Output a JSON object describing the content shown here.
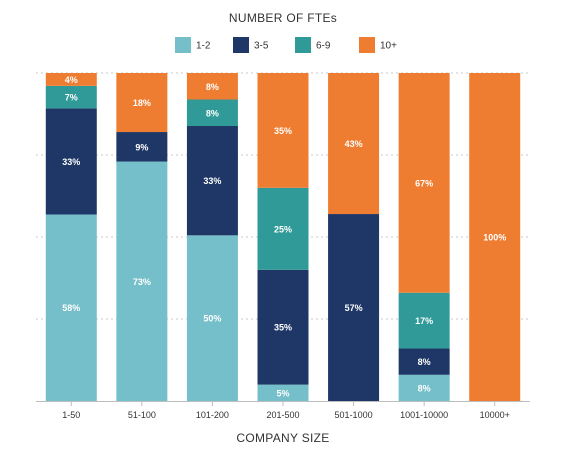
{
  "chart_data": {
    "type": "bar",
    "stacked": true,
    "title": "NUMBER OF FTEs",
    "xlabel": "COMPANY SIZE",
    "ylabel": "",
    "ylim": [
      0,
      100
    ],
    "grid": true,
    "legend_position": "top",
    "categories": [
      "1-50",
      "51-100",
      "101-200",
      "201-500",
      "501-1000",
      "1001-10000",
      "10000+"
    ],
    "series": [
      {
        "name": "1-2",
        "color": "#74bfca",
        "values": [
          58,
          73,
          50,
          5,
          0,
          8,
          0
        ],
        "labels": [
          "58%",
          "73%",
          "50%",
          "5%",
          "",
          "8%",
          ""
        ]
      },
      {
        "name": "3-5",
        "color": "#1f3766",
        "values": [
          33,
          9,
          33,
          35,
          57,
          8,
          0
        ],
        "labels": [
          "33%",
          "9%",
          "33%",
          "35%",
          "57%",
          "8%",
          ""
        ]
      },
      {
        "name": "6-9",
        "color": "#2f9a97",
        "values": [
          7,
          0,
          8,
          25,
          0,
          17,
          0
        ],
        "labels": [
          "7%",
          "",
          "8%",
          "25%",
          "",
          "17%",
          ""
        ]
      },
      {
        "name": "10+",
        "color": "#ef7d31",
        "values": [
          4,
          18,
          8,
          35,
          43,
          67,
          100
        ],
        "labels": [
          "4%",
          "18%",
          "8%",
          "35%",
          "43%",
          "67%",
          "100%"
        ]
      }
    ]
  }
}
